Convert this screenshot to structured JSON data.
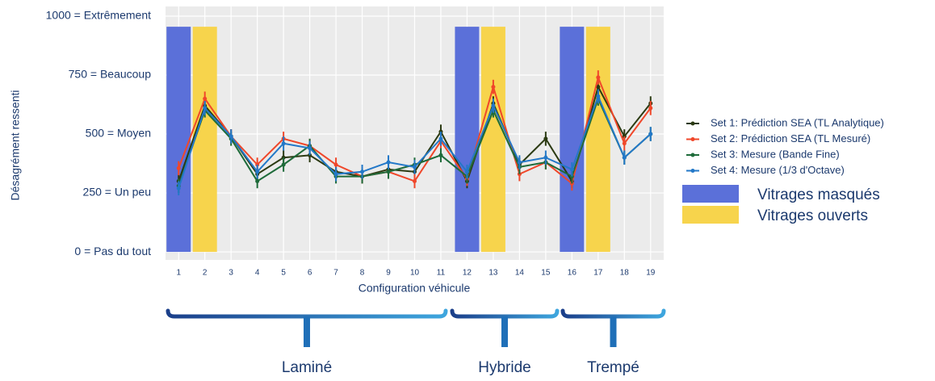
{
  "chart_data": {
    "type": "bar-line",
    "y_label": "Désagrément ressenti",
    "x_label": "Configuration véhicule",
    "categories": [
      "1",
      "2",
      "3",
      "4",
      "5",
      "6",
      "7",
      "8",
      "9",
      "10",
      "11",
      "12",
      "13",
      "14",
      "15",
      "16",
      "17",
      "18",
      "19"
    ],
    "ylim": [
      -34,
      1041
    ],
    "yticks": [
      {
        "value": 0,
        "label": "0 = Pas du tout"
      },
      {
        "value": 250,
        "label": "250 = Un peu"
      },
      {
        "value": 500,
        "label": "500 = Moyen"
      },
      {
        "value": 750,
        "label": "750 = Beaucoup"
      },
      {
        "value": 1000,
        "label": "1000 = Extrêmement"
      }
    ],
    "grid": true,
    "series": [
      {
        "name": "Set 1: Prédiction SEA (TL Analytique)",
        "type": "line",
        "color": "#2b3a12",
        "error": 30,
        "values": [
          300,
          620,
          490,
          330,
          400,
          410,
          340,
          320,
          350,
          340,
          510,
          300,
          630,
          370,
          480,
          300,
          700,
          490,
          630
        ]
      },
      {
        "name": "Set 2: Prédiction SEA (TL Mesuré)",
        "type": "line",
        "color": "#f0472a",
        "error": 30,
        "values": [
          355,
          650,
          490,
          370,
          480,
          450,
          370,
          320,
          340,
          300,
          470,
          310,
          700,
          330,
          380,
          290,
          740,
          460,
          610
        ]
      },
      {
        "name": "Set 3: Mesure (Bande Fine)",
        "type": "line",
        "color": "#1e6b3a",
        "error": 30,
        "values": [
          280,
          600,
          480,
          300,
          370,
          450,
          320,
          320,
          340,
          370,
          410,
          320,
          600,
          360,
          380,
          320,
          650,
          400,
          500
        ]
      },
      {
        "name": "Set 4: Mesure (1/3 d'Octave)",
        "type": "line",
        "color": "#2378c8",
        "error": 30,
        "values": [
          270,
          610,
          490,
          340,
          460,
          440,
          330,
          340,
          380,
          360,
          480,
          340,
          620,
          380,
          400,
          350,
          660,
          400,
          500
        ]
      },
      {
        "name": "Vitrages masqués",
        "type": "bar",
        "color": "#5b70d9",
        "values": [
          955,
          null,
          null,
          null,
          null,
          null,
          null,
          null,
          null,
          null,
          null,
          955,
          null,
          null,
          null,
          955,
          null,
          null,
          null
        ]
      },
      {
        "name": "Vitrages ouverts",
        "type": "bar",
        "color": "#f7d44c",
        "values": [
          null,
          955,
          null,
          null,
          null,
          null,
          null,
          null,
          null,
          null,
          null,
          null,
          955,
          null,
          null,
          null,
          955,
          null,
          null
        ]
      }
    ],
    "groups": [
      "Laminé",
      "Hybride",
      "Trempé"
    ]
  }
}
